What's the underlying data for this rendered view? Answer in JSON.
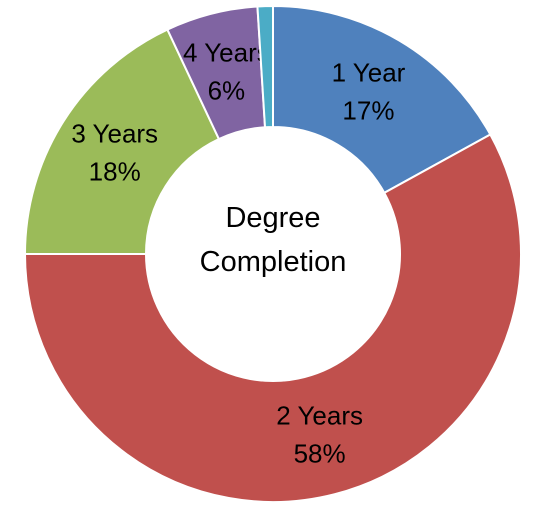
{
  "chart_data": {
    "type": "donut",
    "title": "Degree Completion",
    "categories": [
      "1 Year",
      "2 Years",
      "3 Years",
      "4 Years",
      null
    ],
    "values": [
      17,
      58,
      18,
      6,
      1
    ],
    "value_labels": [
      "17%",
      "58%",
      "18%",
      "6%",
      null
    ],
    "colors": [
      "#4f81bd",
      "#c0504d",
      "#9bbb59",
      "#8064a2",
      "#4bacc6"
    ]
  }
}
